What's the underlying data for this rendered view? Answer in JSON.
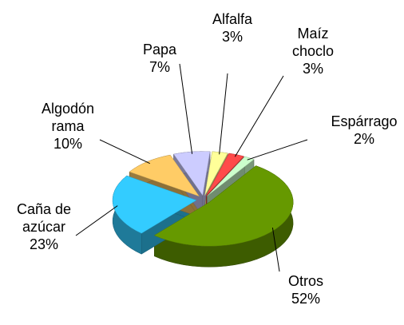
{
  "chart_data": {
    "type": "pie3d",
    "categories": [
      "Alfalfa",
      "Maíz\nchoclo",
      "Espárrago",
      "Otros",
      "Caña de\nazúcar",
      "Algodón\nrama",
      "Papa"
    ],
    "values": [
      3,
      3,
      2,
      52,
      23,
      10,
      7
    ],
    "value_labels": [
      "3%",
      "3%",
      "2%",
      "52%",
      "23%",
      "10%",
      "7%"
    ],
    "colors": [
      "#ffff99",
      "#ff4a4a",
      "#ccffcc",
      "#669900",
      "#33ccff",
      "#ffcc66",
      "#ccccff"
    ]
  }
}
